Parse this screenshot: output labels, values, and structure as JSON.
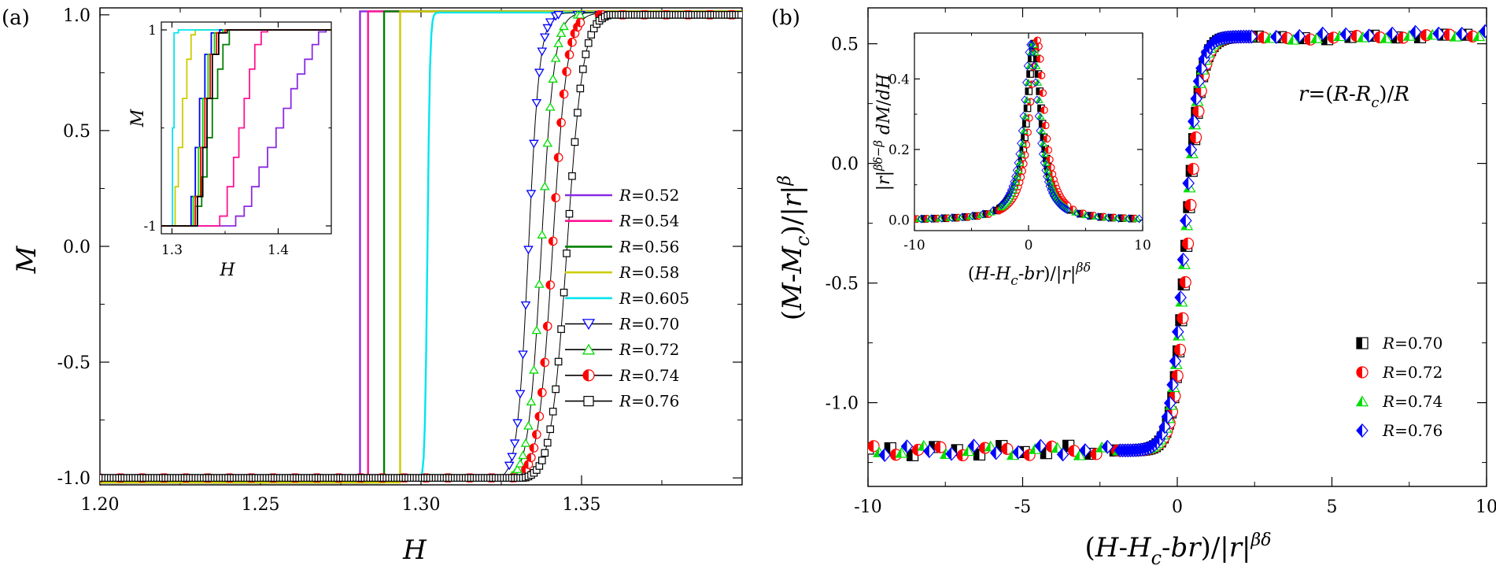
{
  "panels": {
    "a": {
      "letter": "(a)",
      "xlabel": "H",
      "ylabel": "M",
      "legend": [
        {
          "prefix": "R",
          "text": "=0.52",
          "color": "#8a2be2",
          "marker": "line"
        },
        {
          "prefix": "R",
          "text": "=0.54",
          "color": "#ff1493",
          "marker": "line"
        },
        {
          "prefix": "R",
          "text": "=0.56",
          "color": "#008000",
          "marker": "line"
        },
        {
          "prefix": "R",
          "text": "=0.58",
          "color": "#cccc00",
          "marker": "line"
        },
        {
          "prefix": "R",
          "text": "=0.605",
          "color": "#00e5ee",
          "marker": "line"
        },
        {
          "prefix": "R",
          "text": "=0.70",
          "color": "#0000ff",
          "marker": "triangle-down"
        },
        {
          "prefix": "R",
          "text": "=0.72",
          "color": "#00dd00",
          "marker": "triangle-up"
        },
        {
          "prefix": "R",
          "text": "=0.74",
          "color": "#ff0000",
          "marker": "half-circle"
        },
        {
          "prefix": "R",
          "text": "=0.76",
          "color": "#000000",
          "marker": "square"
        }
      ],
      "inset": {
        "xlabel": "H",
        "ylabel": "M"
      }
    },
    "b": {
      "letter": "(b)",
      "xlabel": "(H-H_c-br)/|r|^(βδ)",
      "ylabel": "(M-M_c)/|r|^β",
      "formula": "r=(R-R_c)/R",
      "legend": [
        {
          "prefix": "R",
          "text": "=0.70",
          "color": "#000000",
          "marker": "half-square"
        },
        {
          "prefix": "R",
          "text": "=0.72",
          "color": "#ff0000",
          "marker": "half-circle"
        },
        {
          "prefix": "R",
          "text": "=0.74",
          "color": "#00dd00",
          "marker": "half-triangle"
        },
        {
          "prefix": "R",
          "text": "=0.76",
          "color": "#0000ff",
          "marker": "half-diamond"
        }
      ],
      "inset": {
        "xlabel": "(H-H_c-br)/|r|^(βδ)",
        "ylabel": "|r|^(βδ−β) dM/dH"
      }
    }
  },
  "chart_data": [
    {
      "id": "a-main",
      "type": "line",
      "xlabel": "H",
      "ylabel": "M",
      "xlim": [
        1.2,
        1.4
      ],
      "ylim": [
        -1.03,
        1.03
      ],
      "xticks": [
        1.2,
        1.25,
        1.3,
        1.35
      ],
      "xtick_labels": [
        "1.20",
        "1.25",
        "1.30",
        "1.35"
      ],
      "yticks": [
        -1.0,
        -0.5,
        0.0,
        0.5,
        1.0
      ],
      "ytick_labels": [
        "-1.0",
        "-0.5",
        "0.0",
        "0.5",
        "1.0"
      ],
      "legend_position": "center-right",
      "series": [
        {
          "name": "R=0.52",
          "kind": "jump",
          "Hc": 1.281,
          "color": "#8a2be2"
        },
        {
          "name": "R=0.54",
          "kind": "jump",
          "Hc": 1.2835,
          "color": "#ff1493"
        },
        {
          "name": "R=0.56",
          "kind": "jump",
          "Hc": 1.2885,
          "color": "#008000"
        },
        {
          "name": "R=0.58",
          "kind": "jump",
          "Hc": 1.2935,
          "color": "#cccc00"
        },
        {
          "name": "R=0.605",
          "kind": "steep",
          "Hc": 1.302,
          "width": 0.0008,
          "color": "#00e5ee"
        },
        {
          "name": "R=0.70",
          "kind": "smooth",
          "Hc": 1.3335,
          "width": 0.0035,
          "marker": "triangle-down",
          "color": "#0000ff"
        },
        {
          "name": "R=0.72",
          "kind": "smooth",
          "Hc": 1.3375,
          "width": 0.004,
          "marker": "triangle-up",
          "color": "#00dd00"
        },
        {
          "name": "R=0.74",
          "kind": "smooth",
          "Hc": 1.341,
          "width": 0.0045,
          "marker": "half-circle",
          "color": "#ff0000"
        },
        {
          "name": "R=0.76",
          "kind": "smooth",
          "Hc": 1.3455,
          "width": 0.005,
          "marker": "square",
          "color": "#000000"
        }
      ]
    },
    {
      "id": "a-inset",
      "type": "line",
      "xlabel": "H",
      "ylabel": "M",
      "xlim": [
        1.29,
        1.45
      ],
      "ylim": [
        -1,
        1
      ],
      "xticks": [
        1.3,
        1.4
      ],
      "xtick_labels": [
        "1.3",
        "1.4"
      ],
      "yticks": [
        -1,
        1
      ],
      "ytick_labels": [
        "-1",
        "1"
      ],
      "series": [
        {
          "name": "R=0.52",
          "color": "#8a2be2",
          "steps": [
            [
              1.29,
              -1
            ],
            [
              1.355,
              -1
            ],
            [
              1.36,
              -0.9
            ],
            [
              1.368,
              -0.8
            ],
            [
              1.375,
              -0.6
            ],
            [
              1.382,
              -0.4
            ],
            [
              1.39,
              -0.2
            ],
            [
              1.398,
              0.0
            ],
            [
              1.405,
              0.2
            ],
            [
              1.412,
              0.4
            ],
            [
              1.418,
              0.55
            ],
            [
              1.425,
              0.7
            ],
            [
              1.432,
              0.85
            ],
            [
              1.438,
              0.98
            ],
            [
              1.445,
              1
            ]
          ]
        },
        {
          "name": "R=0.54",
          "color": "#ff1493",
          "steps": [
            [
              1.29,
              -1
            ],
            [
              1.34,
              -1
            ],
            [
              1.345,
              -0.9
            ],
            [
              1.352,
              -0.6
            ],
            [
              1.358,
              -0.3
            ],
            [
              1.363,
              0.0
            ],
            [
              1.368,
              0.3
            ],
            [
              1.373,
              0.6
            ],
            [
              1.378,
              0.85
            ],
            [
              1.384,
              0.98
            ],
            [
              1.39,
              1
            ]
          ]
        },
        {
          "name": "R=0.56",
          "color": "#008000",
          "steps": [
            [
              1.29,
              -1
            ],
            [
              1.315,
              -1
            ],
            [
              1.322,
              -0.8
            ],
            [
              1.328,
              -0.5
            ],
            [
              1.333,
              -0.1
            ],
            [
              1.338,
              0.3
            ],
            [
              1.343,
              0.6
            ],
            [
              1.348,
              0.85
            ],
            [
              1.354,
              1
            ]
          ]
        },
        {
          "name": "R=0.58",
          "color": "#cccc00",
          "steps": [
            [
              1.29,
              -1
            ],
            [
              1.3,
              -1
            ],
            [
              1.303,
              -0.6
            ],
            [
              1.306,
              -0.2
            ],
            [
              1.31,
              0.3
            ],
            [
              1.314,
              0.7
            ],
            [
              1.318,
              0.95
            ],
            [
              1.322,
              1
            ]
          ]
        },
        {
          "name": "R=0.605",
          "color": "#00e5ee",
          "steps": [
            [
              1.29,
              -1
            ],
            [
              1.299,
              -1
            ],
            [
              1.3005,
              0.0
            ],
            [
              1.302,
              0.97
            ],
            [
              1.306,
              1
            ]
          ]
        },
        {
          "name": "R=0.70",
          "color": "#0000ff",
          "steps": [
            [
              1.29,
              -1
            ],
            [
              1.31,
              -1
            ],
            [
              1.318,
              -0.7
            ],
            [
              1.322,
              -0.2
            ],
            [
              1.326,
              0.3
            ],
            [
              1.331,
              0.75
            ],
            [
              1.337,
              0.97
            ],
            [
              1.345,
              1
            ]
          ]
        },
        {
          "name": "R=0.72",
          "color": "#00dd00",
          "steps": [
            [
              1.29,
              -1
            ],
            [
              1.312,
              -1
            ],
            [
              1.32,
              -0.7
            ],
            [
              1.325,
              -0.2
            ],
            [
              1.329,
              0.3
            ],
            [
              1.334,
              0.75
            ],
            [
              1.34,
              0.97
            ],
            [
              1.348,
              1
            ]
          ]
        },
        {
          "name": "R=0.74",
          "color": "#ff0000",
          "steps": [
            [
              1.29,
              -1
            ],
            [
              1.314,
              -1
            ],
            [
              1.322,
              -0.7
            ],
            [
              1.327,
              -0.2
            ],
            [
              1.331,
              0.3
            ],
            [
              1.336,
              0.75
            ],
            [
              1.342,
              0.97
            ],
            [
              1.35,
              1
            ]
          ]
        },
        {
          "name": "R=0.76",
          "color": "#000000",
          "steps": [
            [
              1.29,
              -1
            ],
            [
              1.316,
              -1
            ],
            [
              1.324,
              -0.7
            ],
            [
              1.329,
              -0.2
            ],
            [
              1.333,
              0.3
            ],
            [
              1.338,
              0.75
            ],
            [
              1.344,
              0.97
            ],
            [
              1.352,
              1
            ]
          ]
        }
      ]
    },
    {
      "id": "b-main",
      "type": "scatter",
      "xlabel": "(H-H_c-br)/|r|^(βδ)",
      "ylabel": "(M-M_c)/|r|^β",
      "xlim": [
        -10,
        10
      ],
      "ylim": [
        -1.35,
        0.65
      ],
      "xticks": [
        -10,
        -5,
        0,
        5,
        10
      ],
      "xtick_labels": [
        "-10",
        "-5",
        "0",
        "5",
        "10"
      ],
      "yticks": [
        -1.0,
        -0.5,
        0.0,
        0.5
      ],
      "ytick_labels": [
        "-1.0",
        "-0.5",
        "0.0",
        "0.5"
      ],
      "legend_position": "bottom-right",
      "collapse_curve": {
        "lower": -1.2,
        "upper": 0.53,
        "center": 0.3,
        "width": 0.45
      },
      "series": [
        {
          "name": "R=0.70",
          "marker": "half-square",
          "color": "#000000",
          "x_offset": 0.0
        },
        {
          "name": "R=0.72",
          "marker": "half-circle",
          "color": "#ff0000",
          "x_offset": 0.18
        },
        {
          "name": "R=0.74",
          "marker": "half-triangle",
          "color": "#00dd00",
          "x_offset": -0.12
        },
        {
          "name": "R=0.76",
          "marker": "half-diamond",
          "color": "#0000ff",
          "x_offset": -0.3
        }
      ]
    },
    {
      "id": "b-inset",
      "type": "scatter",
      "xlabel": "(H-H_c-br)/|r|^(βδ)",
      "ylabel": "|r|^(βδ−β) dM/dH",
      "xlim": [
        -10,
        10
      ],
      "ylim": [
        -0.03,
        0.53
      ],
      "xticks": [
        -10,
        0,
        10
      ],
      "xtick_labels": [
        "-10",
        "0",
        "10"
      ],
      "yticks": [
        0.0,
        0.2,
        0.4
      ],
      "ytick_labels": [
        "0.0",
        "0.2",
        "0.4"
      ],
      "peak": {
        "x": 0.5,
        "height": 0.5,
        "width": 0.9
      },
      "series": [
        {
          "name": "R=0.70",
          "color": "#000000"
        },
        {
          "name": "R=0.72",
          "color": "#ff0000"
        },
        {
          "name": "R=0.74",
          "color": "#00dd00"
        },
        {
          "name": "R=0.76",
          "color": "#0000ff"
        }
      ]
    }
  ]
}
